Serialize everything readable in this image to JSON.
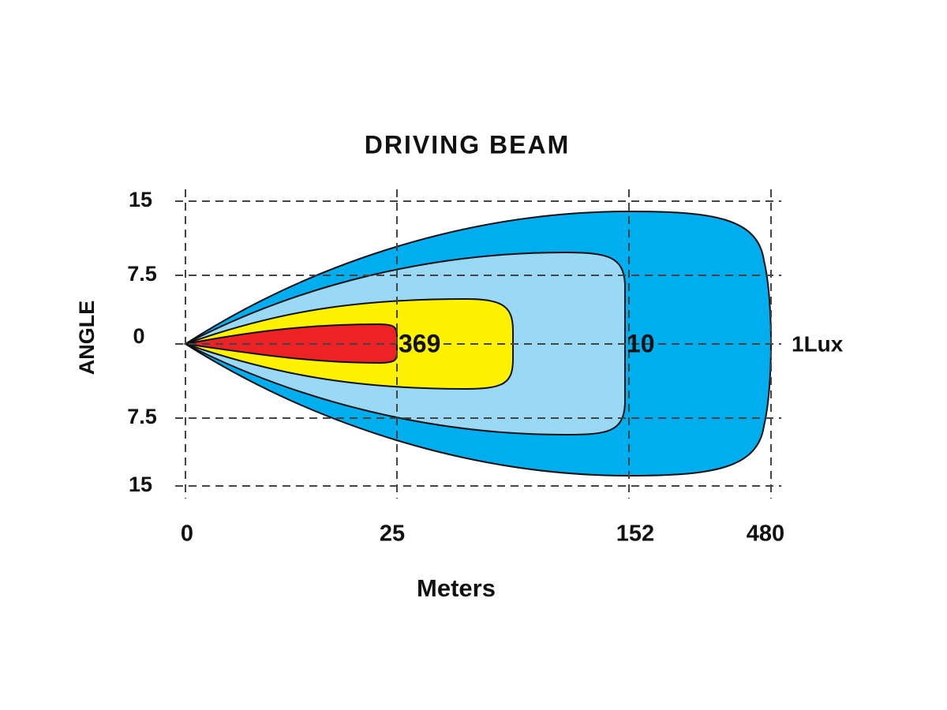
{
  "title": "DRIVING  BEAM",
  "y_axis": {
    "label": "ANGLE",
    "ticks": [
      "15",
      "7.5",
      "0",
      "7.5",
      "15"
    ]
  },
  "x_axis": {
    "label": "Meters",
    "ticks": [
      "0",
      "25",
      "152",
      "480"
    ]
  },
  "contours": [
    "369",
    "10",
    "1Lux"
  ]
}
